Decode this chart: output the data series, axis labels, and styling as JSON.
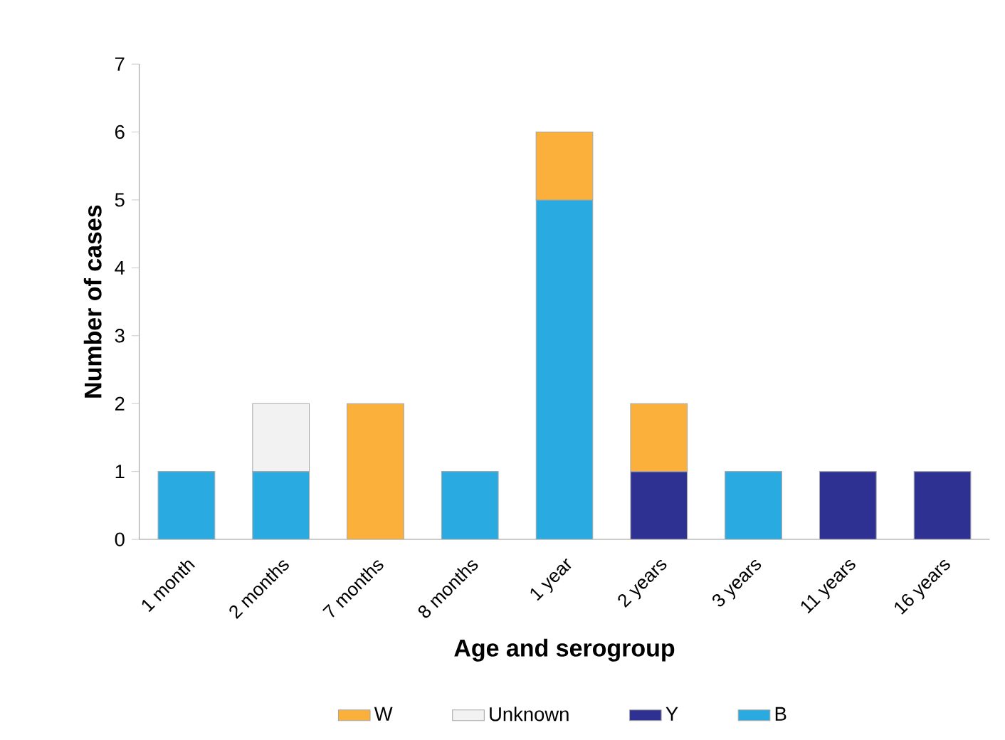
{
  "chart_data": {
    "type": "bar",
    "stacked": true,
    "xlabel": "Age and serogroup",
    "ylabel": "Number of cases",
    "categories": [
      "1 month",
      "2 months",
      "7 months",
      "8 months",
      "1 year",
      "2 years",
      "3 years",
      "11 years",
      "16 years"
    ],
    "series": [
      {
        "name": "B",
        "color": "#29abe2",
        "values": [
          1,
          1,
          null,
          1,
          5,
          null,
          1,
          null,
          null
        ]
      },
      {
        "name": "Y",
        "color": "#2e3192",
        "values": [
          null,
          null,
          null,
          null,
          null,
          1,
          null,
          1,
          1
        ]
      },
      {
        "name": "Unknown",
        "color": "#f2f2f2",
        "values": [
          null,
          1,
          null,
          null,
          null,
          null,
          null,
          null,
          null
        ]
      },
      {
        "name": "W",
        "color": "#fbb03b",
        "values": [
          null,
          null,
          2,
          null,
          1,
          1,
          null,
          null,
          null
        ]
      }
    ],
    "ylim": [
      0,
      7
    ],
    "yticks": [
      0,
      1,
      2,
      3,
      4,
      5,
      6,
      7
    ],
    "legend": "bottom"
  }
}
